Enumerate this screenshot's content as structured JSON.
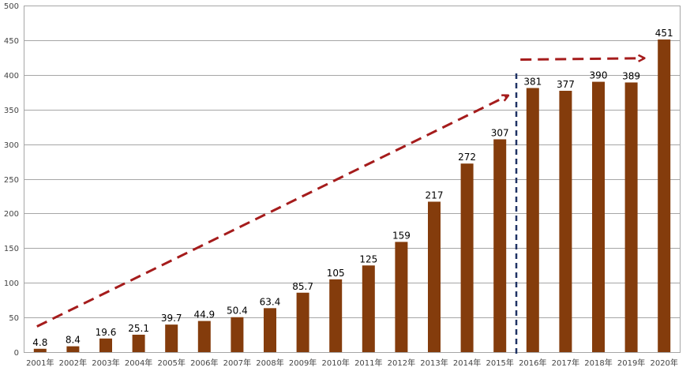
{
  "chart_data": {
    "type": "bar",
    "title": "",
    "xlabel": "",
    "ylabel": "",
    "ylim": [
      0,
      500
    ],
    "yticks": [
      0,
      50,
      100,
      150,
      200,
      250,
      300,
      350,
      400,
      450,
      500
    ],
    "grid": true,
    "categories": [
      "2001年",
      "2002年",
      "2003年",
      "2004年",
      "2005年",
      "2006年",
      "2007年",
      "2008年",
      "2009年",
      "2010年",
      "2011年",
      "2012年",
      "2013年",
      "2014年",
      "2015年",
      "2016年",
      "2017年",
      "2018年",
      "2019年",
      "2020年"
    ],
    "values": [
      4.8,
      8.4,
      19.6,
      25.1,
      39.7,
      44.9,
      50.4,
      63.4,
      85.7,
      105,
      125,
      159,
      217,
      272,
      307,
      381,
      377,
      390,
      389,
      451
    ],
    "data_labels": [
      "4.8",
      "8.4",
      "19.6",
      "25.1",
      "39.7",
      "44.9",
      "50.4",
      "63.4",
      "85.7",
      "105",
      "125",
      "159",
      "217",
      "272",
      "307",
      "381",
      "377",
      "390",
      "389",
      "451"
    ],
    "colors": {
      "bar": "#843C0C",
      "grid": "#a6a6a6",
      "trend_arrow": "#a51c1c",
      "divider": "#1f3264"
    },
    "annotations": {
      "trend_arrow_1": {
        "from_category": "2001年",
        "from_value": 37,
        "to_category": "2015年",
        "to_value": 370
      },
      "trend_arrow_2": {
        "from_category": "2015年",
        "from_value": 422,
        "to_category": "2019年",
        "to_value": 424
      },
      "divider_between": [
        "2015年",
        "2016年"
      ]
    }
  }
}
